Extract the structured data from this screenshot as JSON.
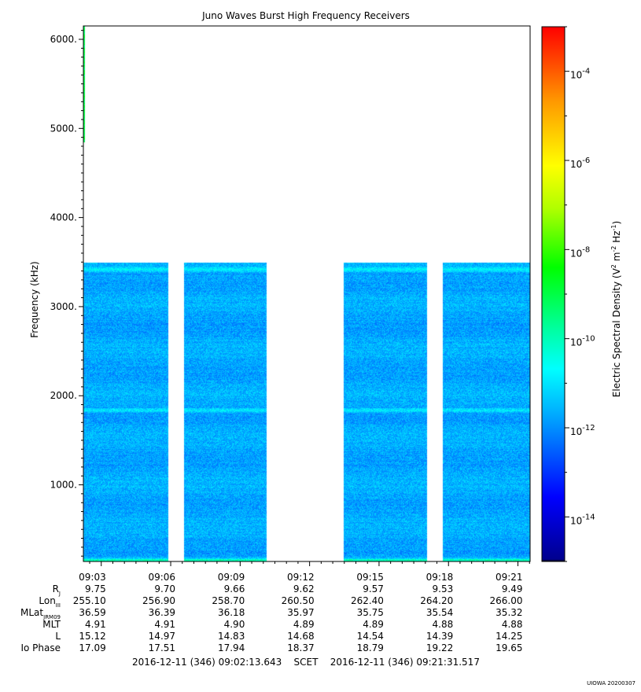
{
  "chart_data": {
    "type": "heatmap",
    "title": "Juno Waves Burst High Frequency Receivers",
    "ylabel": "Frequency (kHz)",
    "ylim": [
      140,
      6150
    ],
    "y_ticks": [
      {
        "value": 1000,
        "label": "1000."
      },
      {
        "value": 2000,
        "label": "2000."
      },
      {
        "value": 3000,
        "label": "3000."
      },
      {
        "value": 4000,
        "label": "4000."
      },
      {
        "value": 5000,
        "label": "5000."
      },
      {
        "value": 6000,
        "label": "6000."
      }
    ],
    "y_minor_step": 100,
    "x_scale": "time",
    "x_start": "2016-12-11T09:02:13.643",
    "x_end": "2016-12-11T09:21:31.517",
    "x_ticks": [
      "09:03",
      "09:06",
      "09:09",
      "09:12",
      "09:15",
      "09:18",
      "09:21"
    ],
    "x_tick_times": [
      "09:03:00",
      "09:06:00",
      "09:09:00",
      "09:12:00",
      "09:15:00",
      "09:18:00",
      "09:21:00"
    ],
    "x_minor_step_sec": 30,
    "data_segments": [
      {
        "start": "09:02:13",
        "end": "09:05:53"
      },
      {
        "start": "09:06:33",
        "end": "09:10:08"
      },
      {
        "start": "09:13:28",
        "end": "09:17:03"
      },
      {
        "start": "09:17:45",
        "end": "09:21:31"
      }
    ],
    "freq_max_khz": 3500,
    "emission_lines_khz": [
      3420,
      1840,
      160
    ],
    "edge_emission": {
      "freq_min_khz": 4850,
      "freq_max_khz": 6150
    },
    "background_level_log10": -11.7,
    "colorbar": {
      "label": "Electric Spectral Density (V^2 m^-2 Hz^-1)",
      "label_parts": {
        "base1": "Electric Spectral Density (V",
        "sup1": "2",
        "base2": " m",
        "sup2": "-2",
        "base3": " Hz",
        "sup3": "-1",
        "base4": ")"
      },
      "log10_min": -15,
      "log10_max": -3,
      "ticks": [
        {
          "exp": -4,
          "label": "-4"
        },
        {
          "exp": -6,
          "label": "-6"
        },
        {
          "exp": -8,
          "label": "-8"
        },
        {
          "exp": -10,
          "label": "-10"
        },
        {
          "exp": -12,
          "label": "-12"
        },
        {
          "exp": -14,
          "label": "-14"
        }
      ],
      "tick_base": "10"
    },
    "ephemeris": {
      "rows": [
        {
          "label": "R",
          "sub": "J",
          "values": [
            "9.75",
            "9.70",
            "9.66",
            "9.62",
            "9.57",
            "9.53",
            "9.49"
          ]
        },
        {
          "label": "Lon",
          "sub": "III",
          "values": [
            "255.10",
            "256.90",
            "258.70",
            "260.50",
            "262.40",
            "264.20",
            "266.00"
          ]
        },
        {
          "label": "MLat",
          "sub": "JRM09",
          "values": [
            "36.59",
            "36.39",
            "36.18",
            "35.97",
            "35.75",
            "35.54",
            "35.32"
          ]
        },
        {
          "label": "MLT",
          "sub": "",
          "values": [
            "4.91",
            "4.91",
            "4.90",
            "4.89",
            "4.89",
            "4.88",
            "4.88"
          ]
        },
        {
          "label": "L",
          "sub": "",
          "values": [
            "15.12",
            "14.97",
            "14.83",
            "14.68",
            "14.54",
            "14.39",
            "14.25"
          ]
        },
        {
          "label": "Io Phase",
          "sub": "",
          "values": [
            "17.09",
            "17.51",
            "17.94",
            "18.37",
            "18.79",
            "19.22",
            "19.65"
          ]
        }
      ]
    },
    "footer": "2016-12-11 (346) 09:02:13.643    SCET    2016-12-11 (346) 09:21:31.517",
    "stamp": "UIOWA 20200307"
  }
}
